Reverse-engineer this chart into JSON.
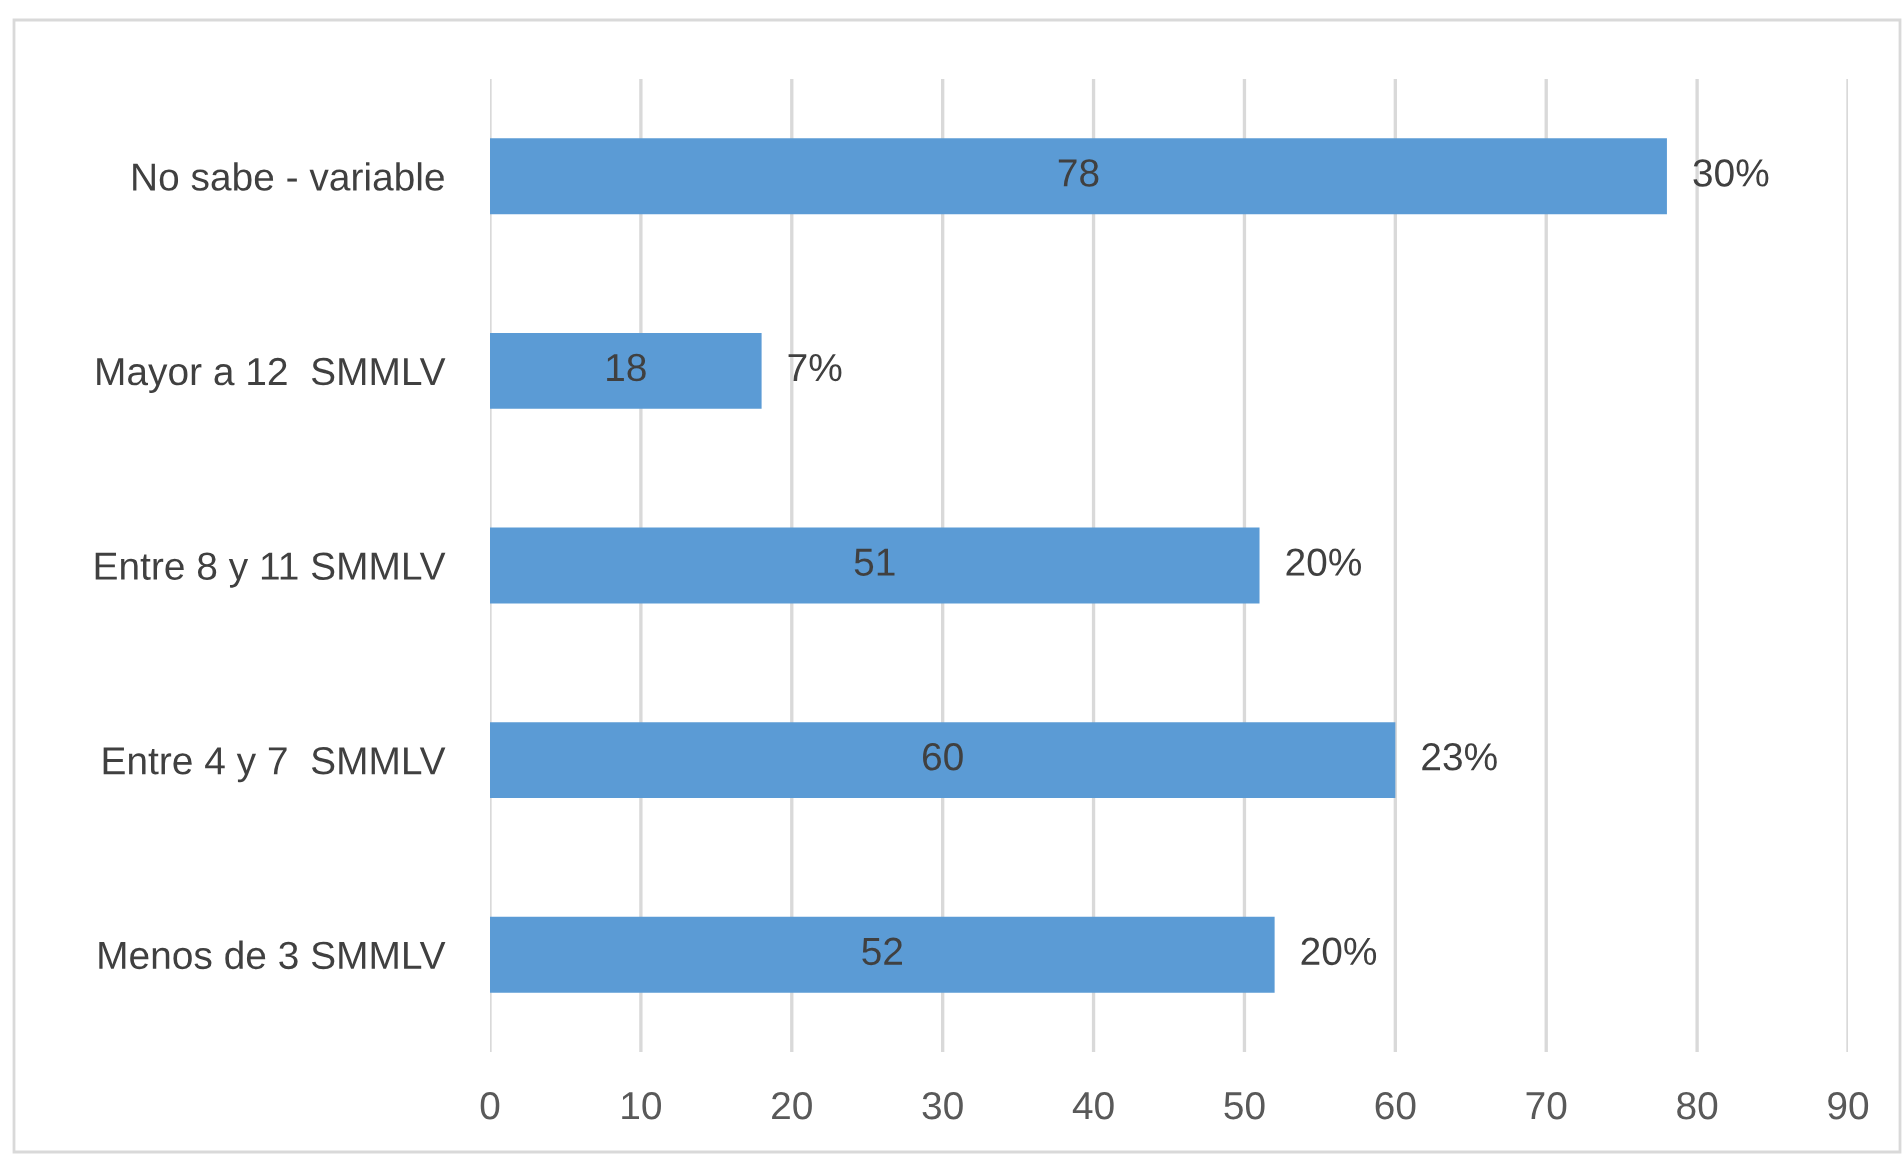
{
  "chart_data": {
    "type": "bar",
    "orientation": "horizontal",
    "categories": [
      "No sabe - variable",
      "Mayor a 12  SMMLV",
      "Entre 8 y 11 SMMLV",
      "Entre 4 y 7  SMMLV",
      "Menos de 3 SMMLV"
    ],
    "values": [
      78,
      18,
      51,
      60,
      52
    ],
    "color": "#5b9bd5",
    "data_labels": true,
    "annotations": [
      {
        "text": "30%",
        "x": 78,
        "y": "No sabe - variable"
      },
      {
        "text": "7%",
        "x": 18,
        "y": "Mayor a 12  SMMLV"
      },
      {
        "text": "20%",
        "x": 51,
        "y": "Entre 8 y 11 SMMLV"
      },
      {
        "text": "23%",
        "x": 60,
        "y": "Entre 4 y 7  SMMLV"
      },
      {
        "text": "20%",
        "x": 52,
        "y": "Menos de 3 SMMLV"
      }
    ],
    "xlim": [
      0,
      90
    ],
    "xticks": [
      0,
      10,
      20,
      30,
      40,
      50,
      60,
      70,
      80,
      90
    ],
    "grid": "x"
  }
}
